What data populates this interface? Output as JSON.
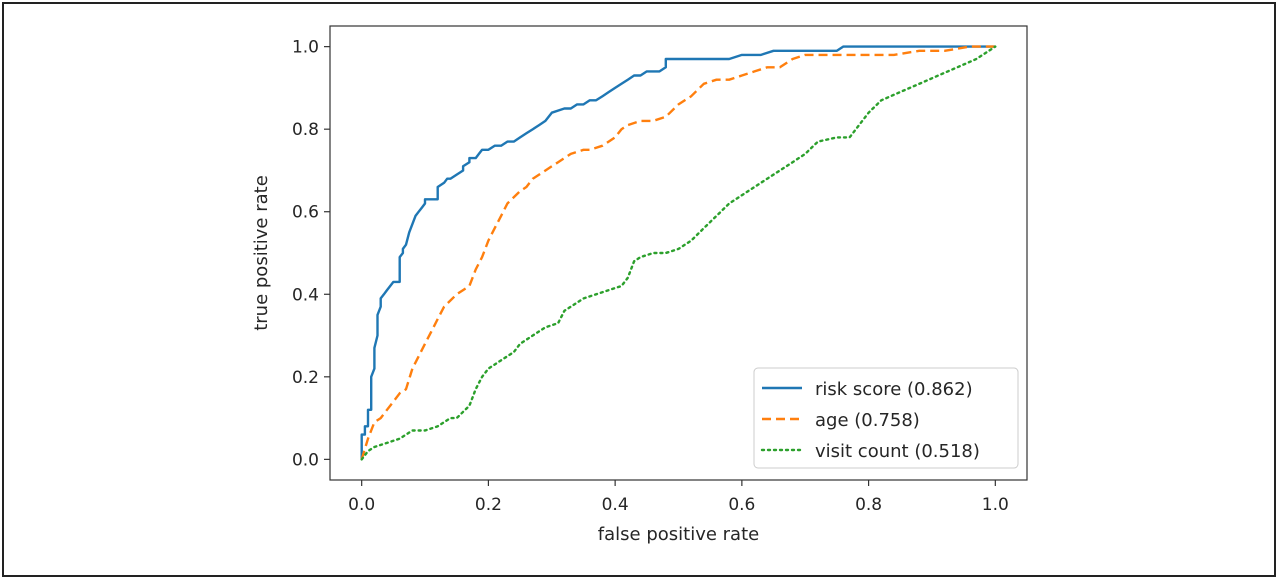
{
  "chart_data": {
    "type": "line",
    "title": "",
    "xlabel": "false positive rate",
    "ylabel": "true positive rate",
    "xlim": [
      -0.05,
      1.05
    ],
    "ylim": [
      -0.05,
      1.05
    ],
    "xticks": [
      0.0,
      0.2,
      0.4,
      0.6,
      0.8,
      1.0
    ],
    "xtick_labels": [
      "0.0",
      "0.2",
      "0.4",
      "0.6",
      "0.8",
      "1.0"
    ],
    "yticks": [
      0.0,
      0.2,
      0.4,
      0.6,
      0.8,
      1.0
    ],
    "ytick_labels": [
      "0.0",
      "0.2",
      "0.4",
      "0.6",
      "0.8",
      "1.0"
    ],
    "grid": false,
    "legend_position": "lower-right",
    "series": [
      {
        "name": "risk score (0.862)",
        "color": "#1f77b4",
        "style": "solid",
        "x": [
          0,
          0,
          0.005,
          0.005,
          0.01,
          0.01,
          0.015,
          0.015,
          0.02,
          0.02,
          0.025,
          0.025,
          0.03,
          0.03,
          0.035,
          0.04,
          0.045,
          0.05,
          0.06,
          0.06,
          0.065,
          0.065,
          0.07,
          0.075,
          0.08,
          0.085,
          0.09,
          0.095,
          0.1,
          0.1,
          0.12,
          0.12,
          0.13,
          0.135,
          0.14,
          0.15,
          0.16,
          0.16,
          0.17,
          0.17,
          0.18,
          0.185,
          0.19,
          0.2,
          0.21,
          0.22,
          0.23,
          0.24,
          0.25,
          0.26,
          0.27,
          0.28,
          0.29,
          0.3,
          0.32,
          0.33,
          0.34,
          0.35,
          0.36,
          0.37,
          0.38,
          0.39,
          0.4,
          0.41,
          0.42,
          0.43,
          0.44,
          0.45,
          0.46,
          0.47,
          0.48,
          0.48,
          0.52,
          0.58,
          0.6,
          0.63,
          0.65,
          0.7,
          0.75,
          0.76,
          0.8,
          0.9,
          1.0
        ],
        "y": [
          0,
          0.06,
          0.06,
          0.08,
          0.08,
          0.12,
          0.12,
          0.2,
          0.22,
          0.27,
          0.3,
          0.35,
          0.37,
          0.39,
          0.4,
          0.41,
          0.42,
          0.43,
          0.43,
          0.49,
          0.5,
          0.51,
          0.52,
          0.55,
          0.57,
          0.59,
          0.6,
          0.61,
          0.62,
          0.63,
          0.63,
          0.66,
          0.67,
          0.68,
          0.68,
          0.69,
          0.7,
          0.71,
          0.72,
          0.73,
          0.73,
          0.74,
          0.75,
          0.75,
          0.76,
          0.76,
          0.77,
          0.77,
          0.78,
          0.79,
          0.8,
          0.81,
          0.82,
          0.84,
          0.85,
          0.85,
          0.86,
          0.86,
          0.87,
          0.87,
          0.88,
          0.89,
          0.9,
          0.91,
          0.92,
          0.93,
          0.93,
          0.94,
          0.94,
          0.94,
          0.95,
          0.97,
          0.97,
          0.97,
          0.98,
          0.98,
          0.99,
          0.99,
          0.99,
          1.0,
          1.0,
          1.0,
          1.0
        ]
      },
      {
        "name": "age (0.758)",
        "color": "#ff7f0e",
        "style": "dashed",
        "x": [
          0,
          0.01,
          0.02,
          0.03,
          0.04,
          0.05,
          0.06,
          0.07,
          0.08,
          0.09,
          0.1,
          0.11,
          0.12,
          0.13,
          0.15,
          0.16,
          0.17,
          0.18,
          0.19,
          0.2,
          0.21,
          0.22,
          0.23,
          0.25,
          0.26,
          0.27,
          0.28,
          0.3,
          0.31,
          0.32,
          0.33,
          0.35,
          0.36,
          0.38,
          0.4,
          0.41,
          0.42,
          0.44,
          0.46,
          0.48,
          0.5,
          0.52,
          0.54,
          0.56,
          0.58,
          0.6,
          0.62,
          0.64,
          0.66,
          0.68,
          0.7,
          0.72,
          0.74,
          0.76,
          0.8,
          0.84,
          0.88,
          0.92,
          0.96,
          1.0
        ],
        "y": [
          0,
          0.05,
          0.09,
          0.1,
          0.12,
          0.14,
          0.16,
          0.17,
          0.22,
          0.25,
          0.28,
          0.31,
          0.34,
          0.37,
          0.4,
          0.41,
          0.42,
          0.46,
          0.49,
          0.53,
          0.56,
          0.59,
          0.62,
          0.65,
          0.66,
          0.68,
          0.69,
          0.71,
          0.72,
          0.73,
          0.74,
          0.75,
          0.75,
          0.76,
          0.78,
          0.8,
          0.81,
          0.82,
          0.82,
          0.83,
          0.86,
          0.88,
          0.91,
          0.92,
          0.92,
          0.93,
          0.94,
          0.95,
          0.95,
          0.97,
          0.98,
          0.98,
          0.98,
          0.98,
          0.98,
          0.98,
          0.99,
          0.99,
          1.0,
          1.0
        ]
      },
      {
        "name": "visit count (0.518)",
        "color": "#2ca02c",
        "style": "dotted",
        "x": [
          0,
          0.01,
          0.02,
          0.04,
          0.06,
          0.08,
          0.1,
          0.12,
          0.14,
          0.15,
          0.17,
          0.18,
          0.19,
          0.2,
          0.22,
          0.24,
          0.25,
          0.27,
          0.29,
          0.31,
          0.32,
          0.33,
          0.35,
          0.37,
          0.39,
          0.41,
          0.42,
          0.43,
          0.44,
          0.46,
          0.48,
          0.5,
          0.52,
          0.54,
          0.56,
          0.58,
          0.6,
          0.62,
          0.64,
          0.66,
          0.68,
          0.7,
          0.72,
          0.75,
          0.77,
          0.78,
          0.8,
          0.82,
          0.85,
          0.88,
          0.91,
          0.94,
          0.97,
          1.0
        ],
        "y": [
          0,
          0.02,
          0.03,
          0.04,
          0.05,
          0.07,
          0.07,
          0.08,
          0.1,
          0.1,
          0.13,
          0.17,
          0.2,
          0.22,
          0.24,
          0.26,
          0.28,
          0.3,
          0.32,
          0.33,
          0.36,
          0.37,
          0.39,
          0.4,
          0.41,
          0.42,
          0.44,
          0.48,
          0.49,
          0.5,
          0.5,
          0.51,
          0.53,
          0.56,
          0.59,
          0.62,
          0.64,
          0.66,
          0.68,
          0.7,
          0.72,
          0.74,
          0.77,
          0.78,
          0.78,
          0.8,
          0.84,
          0.87,
          0.89,
          0.91,
          0.93,
          0.95,
          0.97,
          1.0
        ]
      }
    ]
  }
}
